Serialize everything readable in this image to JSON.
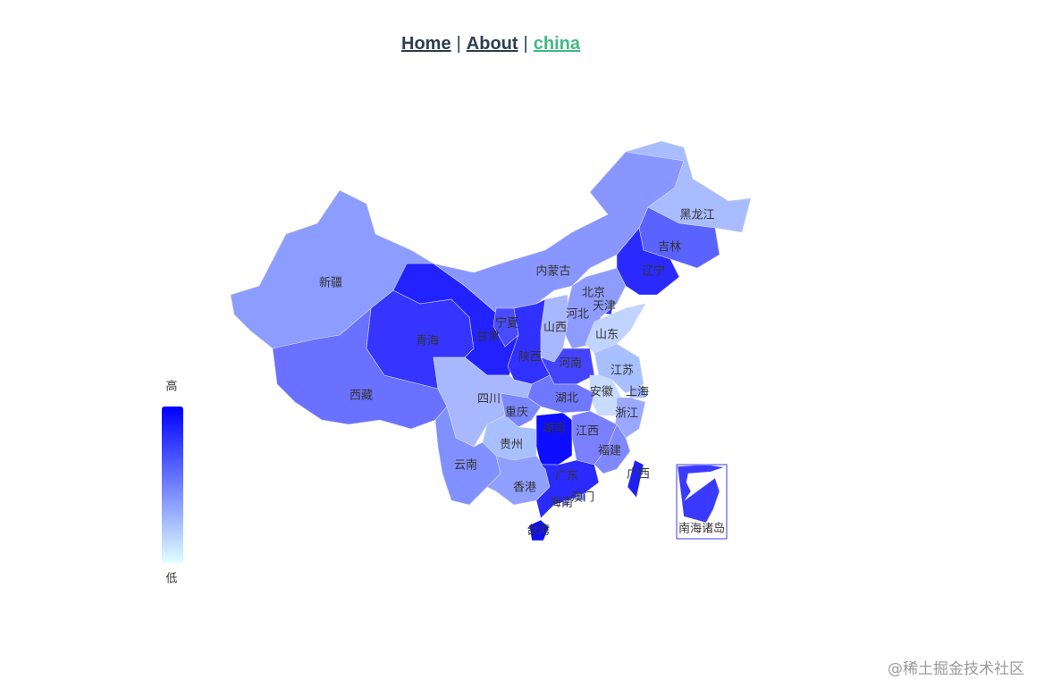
{
  "nav": {
    "links": [
      {
        "label": "Home",
        "active": false
      },
      {
        "label": "About",
        "active": false
      },
      {
        "label": "china",
        "active": true
      }
    ],
    "separator": "|",
    "link_color": "#2c3e50",
    "active_color": "#42b983"
  },
  "map": {
    "provinces": [
      {
        "name": "新疆",
        "color": "#8c9cff"
      },
      {
        "name": "西藏",
        "color": "#6a70ff"
      },
      {
        "name": "青海",
        "color": "#3535ff"
      },
      {
        "name": "甘肃",
        "color": "#2222ff"
      },
      {
        "name": "内蒙古",
        "color": "#8a96ff"
      },
      {
        "name": "黑龙江",
        "color": "#a8bcff"
      },
      {
        "name": "吉林",
        "color": "#5a62ff"
      },
      {
        "name": "辽宁",
        "color": "#2a2aff"
      },
      {
        "name": "北京",
        "color": "#3434ff"
      },
      {
        "name": "天津",
        "color": "#3030ff"
      },
      {
        "name": "河北",
        "color": "#8e9cff"
      },
      {
        "name": "山西",
        "color": "#a8b8ff"
      },
      {
        "name": "山东",
        "color": "#c0d4ff"
      },
      {
        "name": "宁夏",
        "color": "#4a4aff"
      },
      {
        "name": "陕西",
        "color": "#3030ff"
      },
      {
        "name": "河南",
        "color": "#4444ff"
      },
      {
        "name": "江苏",
        "color": "#a8c0ff"
      },
      {
        "name": "安徽",
        "color": "#c8dcff"
      },
      {
        "name": "上海",
        "color": "#a0b0ff"
      },
      {
        "name": "浙江",
        "color": "#9aa8ff"
      },
      {
        "name": "湖北",
        "color": "#7078ff"
      },
      {
        "name": "重庆",
        "color": "#7a88ff"
      },
      {
        "name": "四川",
        "color": "#a8b8ff"
      },
      {
        "name": "贵州",
        "color": "#a8c0ff"
      },
      {
        "name": "湖南",
        "color": "#0d0dff"
      },
      {
        "name": "江西",
        "color": "#7a80ff"
      },
      {
        "name": "福建",
        "color": "#8088ff"
      },
      {
        "name": "云南",
        "color": "#8090ff"
      },
      {
        "name": "广西",
        "color": "#90a0ff"
      },
      {
        "name": "广东",
        "color": "#2a2aff"
      },
      {
        "name": "香港",
        "color": "#8090ff"
      },
      {
        "name": "澳门",
        "color": "#8090ff"
      },
      {
        "name": "海南",
        "color": "#1010ee"
      },
      {
        "name": "台湾",
        "color": "#2020ee"
      },
      {
        "name": "南海诸岛",
        "color": "#3a3aff"
      }
    ],
    "legend": {
      "high": "高",
      "low": "低",
      "colors": [
        "#0000ff",
        "#e0ffff"
      ]
    }
  },
  "watermark": "@稀土掘金技术社区"
}
